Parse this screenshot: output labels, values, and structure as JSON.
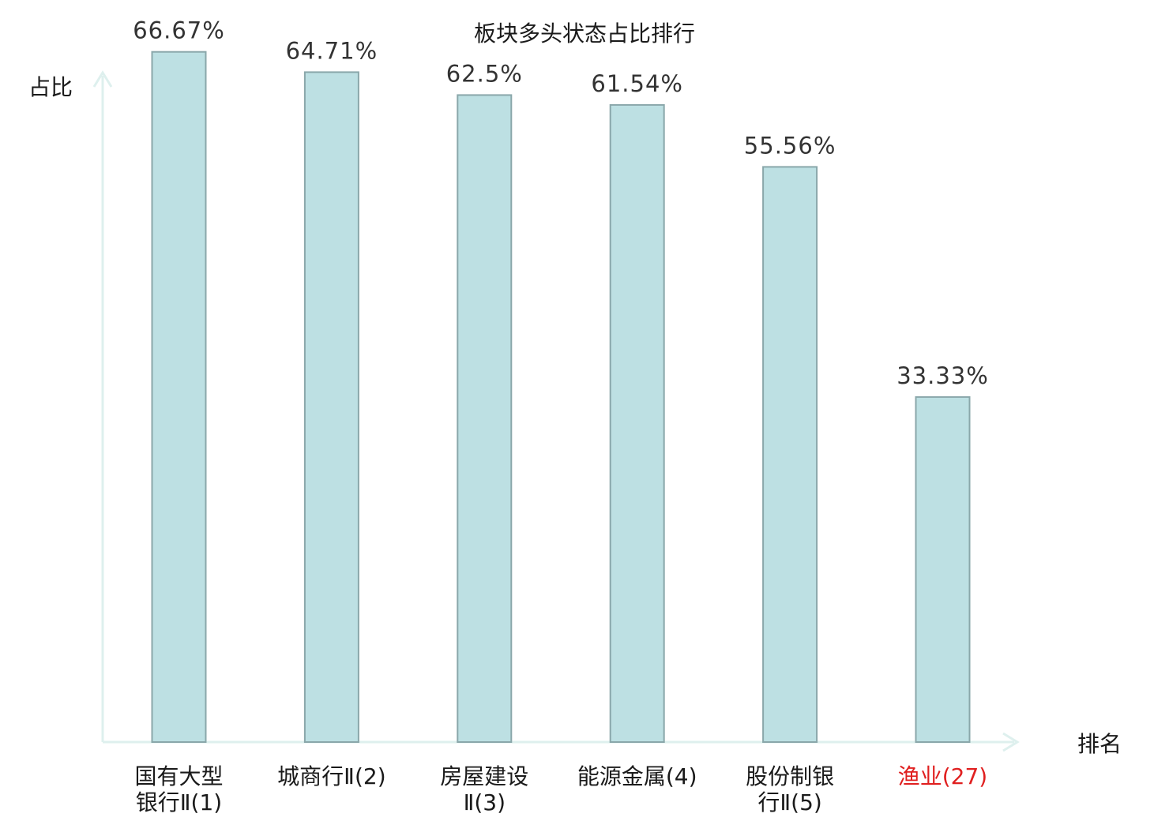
{
  "chart_data": {
    "type": "bar",
    "title": "板块多头状态占比排行",
    "ylabel": "占比",
    "xlabel": "排名",
    "ylim": [
      0,
      70
    ],
    "grid": false,
    "legend": "none",
    "categories": [
      [
        "国有大型",
        "银行Ⅱ(1)"
      ],
      [
        "城商行Ⅱ(2)"
      ],
      [
        "房屋建设",
        "Ⅱ(3)"
      ],
      [
        "能源金属(4)"
      ],
      [
        "股份制银",
        "行Ⅱ(5)"
      ],
      [
        "渔业(27)"
      ]
    ],
    "values": [
      66.67,
      64.71,
      62.5,
      61.54,
      55.56,
      33.33
    ],
    "value_labels": [
      "66.67%",
      "64.71%",
      "62.5%",
      "61.54%",
      "55.56%",
      "33.33%"
    ],
    "category_colors": [
      "#1a1a1a",
      "#1a1a1a",
      "#1a1a1a",
      "#1a1a1a",
      "#1a1a1a",
      "#e02020"
    ],
    "colors": {
      "bar_fill": "#bde0e3",
      "bar_stroke": "#8aa7aa",
      "axis": "#def0ee",
      "highlight": "#e02020"
    }
  }
}
